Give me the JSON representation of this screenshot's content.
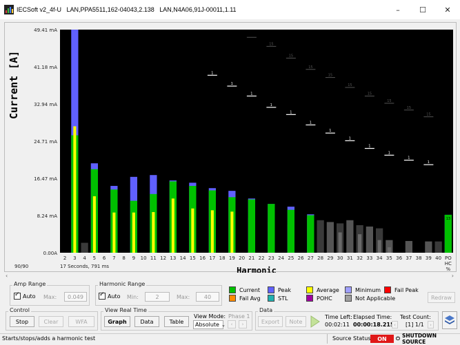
{
  "window": {
    "title": "IECSoft v2_4f-U   LAN,PPA5511,162-04043,2.138   LAN,N4A06,91J-00011,1.11",
    "minimize": "–",
    "maximize": "☐",
    "close": "✕"
  },
  "chart": {
    "ylabel": "Current [A]",
    "xlabel": "Harmonic",
    "counter": "90/90",
    "elapsed_note": "17 Seconds, 791 ms",
    "po_label": "PO",
    "hc_label": "HC",
    "pct_label": "%",
    "flag_label": "13"
  },
  "chart_data": {
    "type": "bar",
    "ylabel": "Current [A]",
    "xlabel": "Harmonic",
    "ylim": [
      0,
      49.41
    ],
    "y_ticks": [
      "0.00A",
      "8.24 mA",
      "16.47 mA",
      "24.71 mA",
      "32.94 mA",
      "41.18 mA",
      "49.41 mA"
    ],
    "categories": [
      "2",
      "3",
      "4",
      "5",
      "6",
      "7",
      "8",
      "9",
      "10",
      "11",
      "12",
      "13",
      "14",
      "15",
      "16",
      "17",
      "18",
      "19",
      "20",
      "21",
      "22",
      "23",
      "24",
      "25",
      "26",
      "27",
      "28",
      "29",
      "30",
      "31",
      "32",
      "33",
      "34",
      "35",
      "36",
      "37",
      "38",
      "39",
      "40",
      "PO HC %"
    ],
    "series": [
      {
        "name": "Current",
        "values": [
          0,
          26,
          0,
          18.5,
          0,
          14,
          0,
          11.5,
          0,
          13,
          0,
          15.8,
          0,
          14.8,
          0,
          13.8,
          0,
          12.3,
          0,
          11.8,
          0,
          10.8,
          0,
          9.5,
          0,
          8.3,
          0,
          0,
          0,
          0,
          0,
          0,
          0,
          0,
          0,
          0,
          0,
          0,
          0,
          8.4
        ]
      },
      {
        "name": "Peak",
        "values": [
          0,
          50,
          0,
          19.8,
          0,
          14.8,
          0,
          16.8,
          0,
          17.2,
          0,
          16,
          0,
          15.5,
          0,
          14.3,
          0,
          13.7,
          0,
          12,
          0,
          10.8,
          0,
          10.2,
          0,
          8.5,
          0,
          0,
          0,
          0,
          0,
          0,
          0,
          0,
          0,
          0,
          0,
          0,
          0,
          8.4
        ]
      },
      {
        "name": "Average",
        "values": [
          0,
          28,
          0,
          12.5,
          0,
          8.9,
          0,
          8.9,
          0,
          9,
          0,
          12,
          0,
          9.8,
          0,
          9.4,
          0,
          9.1,
          0,
          0,
          0,
          0,
          0,
          0,
          0,
          0,
          0,
          0,
          0,
          0,
          0,
          0,
          0,
          0,
          0,
          0,
          0,
          0,
          0,
          0
        ]
      },
      {
        "name": "Not Applicable",
        "values": [
          0,
          0,
          2.2,
          0,
          0,
          0,
          0,
          0,
          0,
          0,
          0,
          0,
          0,
          0,
          0,
          0,
          0,
          0,
          0,
          7.8,
          0,
          6.8,
          0,
          6.2,
          0,
          7.8,
          7.2,
          6.8,
          6.5,
          7.2,
          6.1,
          5.8,
          5.4,
          2.8,
          0,
          2.6,
          0,
          2.5,
          2.5,
          0
        ]
      },
      {
        "name": "Minimum",
        "values": [
          0,
          0,
          0,
          0,
          0,
          0,
          0,
          0,
          0,
          0,
          0,
          0,
          0,
          0,
          0,
          0,
          0,
          0,
          0,
          0,
          0,
          0,
          0,
          0,
          0,
          5.2,
          0,
          0,
          4.5,
          0,
          4.1,
          0,
          2.8,
          1.2,
          0,
          0,
          0,
          0,
          0,
          0
        ]
      }
    ],
    "limits": [
      {
        "category": "17",
        "value": 39.3,
        "label": "1"
      },
      {
        "category": "19",
        "value": 36.9,
        "label": "1"
      },
      {
        "category": "21",
        "value": 34.7,
        "label": "1"
      },
      {
        "category": "23",
        "value": 32.2,
        "label": "1"
      },
      {
        "category": "25",
        "value": 30.6,
        "label": "1"
      },
      {
        "category": "27",
        "value": 28.3,
        "label": "1"
      },
      {
        "category": "29",
        "value": 26.5,
        "label": "1"
      },
      {
        "category": "31",
        "value": 24.8,
        "label": "1"
      },
      {
        "category": "33",
        "value": 23.1,
        "label": "1"
      },
      {
        "category": "35",
        "value": 21.6,
        "label": "1"
      },
      {
        "category": "37",
        "value": 20.5,
        "label": "1"
      },
      {
        "category": "39",
        "value": 19.5,
        "label": "1"
      }
    ],
    "dim_limits": [
      {
        "category": "21",
        "value": 47.7
      },
      {
        "category": "23",
        "value": 45.7,
        "label": "15"
      },
      {
        "category": "25",
        "value": 43.1,
        "label": "15"
      },
      {
        "category": "27",
        "value": 40.6,
        "label": "15"
      },
      {
        "category": "29",
        "value": 38.8,
        "label": "15"
      },
      {
        "category": "31",
        "value": 36.6,
        "label": "15"
      },
      {
        "category": "33",
        "value": 34.7,
        "label": "15"
      },
      {
        "category": "35",
        "value": 33.1,
        "label": "15"
      },
      {
        "category": "37",
        "value": 31.6,
        "label": "15"
      },
      {
        "category": "39",
        "value": 30.1,
        "label": "15"
      }
    ]
  },
  "amp_range": {
    "title": "Amp Range",
    "auto_label": "Auto",
    "max_label": "Max:",
    "max_value": "0.049"
  },
  "harmonic_range": {
    "title": "Harmonic Range",
    "auto_label": "Auto",
    "min_label": "Min:",
    "min_value": "2",
    "max_label": "Max:",
    "max_value": "40"
  },
  "legend": {
    "items": [
      {
        "label": "Current",
        "color": "#00c000"
      },
      {
        "label": "Peak",
        "color": "#6060ff"
      },
      {
        "label": "Average",
        "color": "#ffff00"
      },
      {
        "label": "Minimum",
        "color": "#a0a0ff"
      },
      {
        "label": "Fail Peak",
        "color": "#ff0000"
      },
      {
        "label": "Fail Avg",
        "color": "#ff8c00"
      },
      {
        "label": "STL",
        "color": "#20b0b0"
      },
      {
        "label": "POHC",
        "color": "#a000a0"
      },
      {
        "label": "Not Applicable",
        "color": "#a0a0a0"
      }
    ],
    "redraw": "Redraw"
  },
  "control": {
    "title": "Control",
    "stop": "Stop",
    "clear": "Clear",
    "wfa": "WFA"
  },
  "view": {
    "title": "View Real Time",
    "graph": "Graph",
    "data": "Data",
    "table": "Table",
    "mode_label": "View Mode:",
    "mode_value": "Absolute",
    "phase_label": "Phase 1"
  },
  "data_panel": {
    "title": "Data",
    "export": "Export",
    "note": "Note",
    "time_left_label": "Time Left:",
    "time_left": "00:02:11",
    "elapsed_label": "Elapsed Time:",
    "elapsed": "00:00:18.215",
    "test_count_label": "Test Count:",
    "test_count": "[1] 1/1"
  },
  "status": {
    "message": "Starts/stops/adds a harmonic test",
    "source_label": "Source Status:",
    "source_value": "ON",
    "shutdown": "SHUTDOWN SOURCE"
  }
}
